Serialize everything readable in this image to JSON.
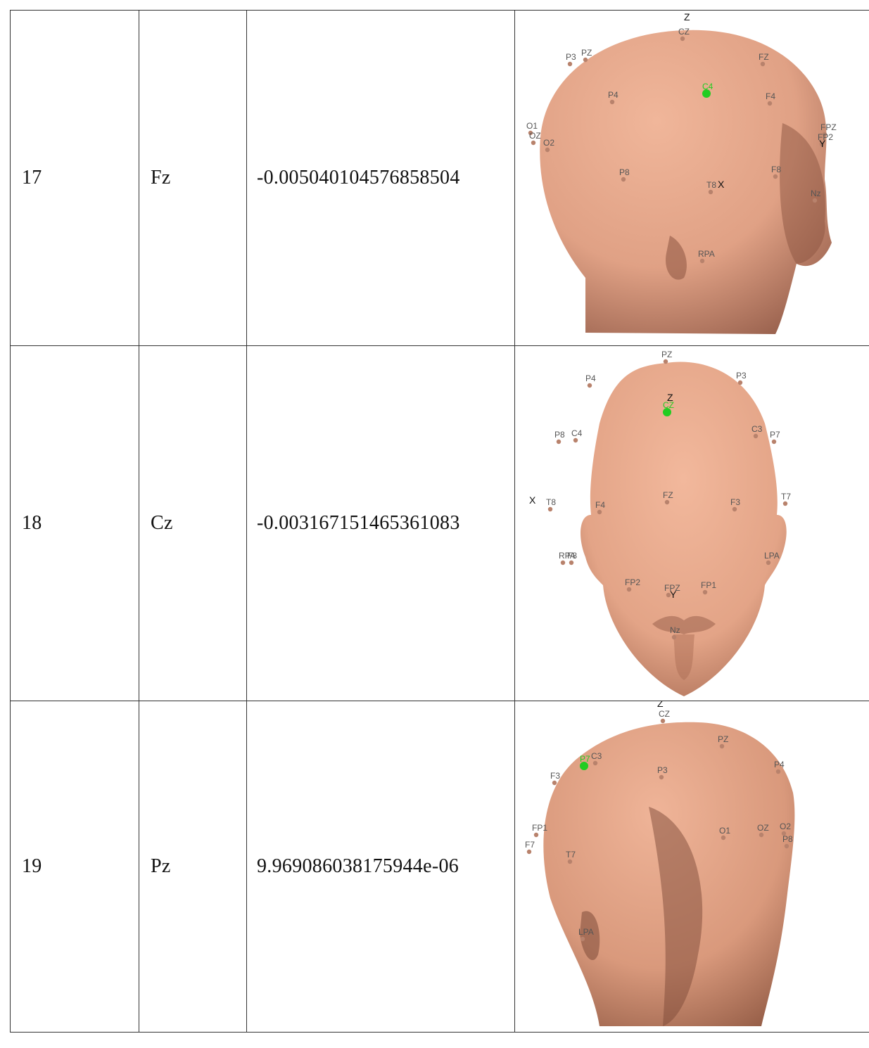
{
  "table": {
    "rows": [
      {
        "index": "17",
        "channel": "Fz",
        "value": "-0.005040104576858504",
        "view": "right-lateral-view",
        "axis_labels": [
          "Z",
          "X",
          "Y"
        ],
        "electrodes": [
          "CZ",
          "PZ",
          "P3",
          "FZ",
          "C4",
          "P4",
          "F4",
          "O1",
          "OZ",
          "O2",
          "FPZ",
          "FP2",
          "P8",
          "T8",
          "F8",
          "Nz",
          "RPA"
        ],
        "highlighted": "C4"
      },
      {
        "index": "18",
        "channel": "Cz",
        "value": "-0.003167151465361083",
        "view": "top-front-view",
        "axis_labels": [
          "Z",
          "X",
          "Y"
        ],
        "electrodes": [
          "PZ",
          "P4",
          "P3",
          "CZ",
          "P8",
          "C4",
          "C3",
          "P7",
          "T8",
          "F4",
          "FZ",
          "F3",
          "T7",
          "RPA",
          "F8",
          "LPA",
          "FP2",
          "FPZ",
          "FP1",
          "Nz"
        ],
        "highlighted": "CZ"
      },
      {
        "index": "19",
        "channel": "Pz",
        "value": "9.969086038175944e-06",
        "view": "left-rear-view",
        "axis_labels": [
          "Z"
        ],
        "electrodes": [
          "CZ",
          "PZ",
          "P4",
          "F3",
          "C3",
          "P3",
          "FP1",
          "F7",
          "T7",
          "O1",
          "OZ",
          "O2",
          "P8",
          "LPA",
          "P7"
        ],
        "highlighted": "P7"
      }
    ]
  },
  "colors": {
    "skin": "#e8a98d",
    "skin_shadow": "#a86a52",
    "electrode": "#b8826c",
    "highlight": "#22cc22",
    "label": "#555555",
    "border": "#333333"
  }
}
